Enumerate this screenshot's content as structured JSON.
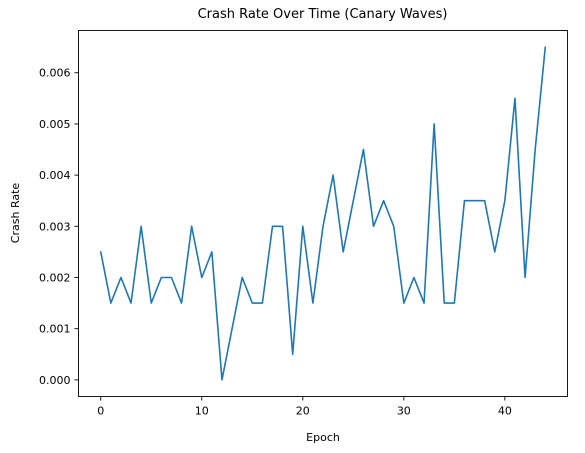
{
  "chart_data": {
    "type": "line",
    "title": "Crash Rate Over Time (Canary Waves)",
    "xlabel": "Epoch",
    "ylabel": "Crash Rate",
    "xlim": [
      -2.2,
      46.2
    ],
    "ylim": [
      -0.000325,
      0.006825
    ],
    "x_ticks": [
      0,
      10,
      20,
      30,
      40
    ],
    "x_tick_labels": [
      "0",
      "10",
      "20",
      "30",
      "40"
    ],
    "y_ticks": [
      0.0,
      0.001,
      0.002,
      0.003,
      0.004,
      0.005,
      0.006
    ],
    "y_tick_labels": [
      "0.000",
      "0.001",
      "0.002",
      "0.003",
      "0.004",
      "0.005",
      "0.006"
    ],
    "grid": false,
    "series": [
      {
        "color": "#1f77b4",
        "x": [
          0,
          1,
          2,
          3,
          4,
          5,
          6,
          7,
          8,
          9,
          10,
          11,
          12,
          13,
          14,
          15,
          16,
          17,
          18,
          19,
          20,
          21,
          22,
          23,
          24,
          25,
          26,
          27,
          28,
          29,
          30,
          31,
          32,
          33,
          34,
          35,
          36,
          37,
          38,
          39,
          40,
          41,
          42,
          43,
          44
        ],
        "values": [
          0.0025,
          0.0015,
          0.002,
          0.0015,
          0.003,
          0.0015,
          0.002,
          0.002,
          0.0015,
          0.003,
          0.002,
          0.0025,
          0.0,
          0.001,
          0.002,
          0.0015,
          0.0015,
          0.003,
          0.003,
          0.0005,
          0.003,
          0.0015,
          0.003,
          0.004,
          0.0025,
          0.0035,
          0.0045,
          0.003,
          0.0035,
          0.003,
          0.0015,
          0.002,
          0.0015,
          0.005,
          0.0015,
          0.0015,
          0.0035,
          0.0035,
          0.0035,
          0.0025,
          0.0035,
          0.0055,
          0.002,
          0.0045,
          0.0065
        ]
      }
    ]
  }
}
